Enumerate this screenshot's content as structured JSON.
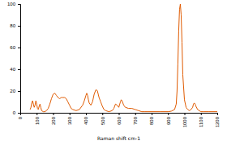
{
  "chart_data": {
    "type": "line",
    "xlabel": "Raman shift cm-1",
    "color": "#e05a00",
    "x": [
      60,
      65,
      70,
      75,
      80,
      85,
      90,
      95,
      100,
      105,
      110,
      115,
      120,
      125,
      130,
      140,
      150,
      160,
      170,
      180,
      190,
      200,
      210,
      220,
      230,
      240,
      250,
      260,
      270,
      280,
      290,
      300,
      310,
      320,
      340,
      360,
      380,
      390,
      400,
      405,
      410,
      415,
      420,
      430,
      440,
      450,
      460,
      465,
      470,
      475,
      480,
      490,
      500,
      510,
      520,
      540,
      560,
      570,
      580,
      590,
      600,
      610,
      615,
      620,
      630,
      640,
      660,
      680,
      700,
      720,
      740,
      760,
      780,
      800,
      850,
      900,
      920,
      940,
      950,
      955,
      960,
      965,
      970,
      975,
      980,
      985,
      990,
      1000,
      1010,
      1020,
      1030,
      1040,
      1050,
      1055,
      1060,
      1065,
      1070,
      1080,
      1100,
      1120,
      1150,
      1200
    ],
    "values": [
      3,
      5,
      9,
      11,
      8,
      5,
      7,
      11,
      8,
      4,
      3,
      6,
      8,
      5,
      2,
      1,
      1,
      2,
      4,
      8,
      13,
      17,
      18,
      16,
      14,
      13,
      14,
      14,
      14,
      13,
      10,
      7,
      4,
      3,
      2,
      3,
      7,
      11,
      16,
      18,
      16,
      12,
      9,
      7,
      10,
      17,
      21,
      21,
      20,
      17,
      14,
      10,
      6,
      3,
      2,
      1,
      2,
      4,
      8,
      7,
      5,
      10,
      12,
      11,
      7,
      5,
      4,
      4,
      3,
      2,
      1,
      1,
      1,
      1,
      1,
      1,
      1.5,
      3,
      8,
      20,
      45,
      75,
      95,
      100,
      90,
      65,
      35,
      12,
      5,
      3,
      2,
      3,
      5,
      8,
      9,
      8,
      6,
      3,
      1,
      1,
      1,
      1
    ],
    "xlim": [
      0,
      1200
    ],
    "xticks": [
      0,
      100,
      200,
      300,
      400,
      500,
      600,
      700,
      800,
      900,
      1000,
      1100,
      1200
    ],
    "ylim": [
      0,
      100
    ],
    "yticks": [
      0,
      20,
      40,
      60,
      80,
      100
    ]
  }
}
